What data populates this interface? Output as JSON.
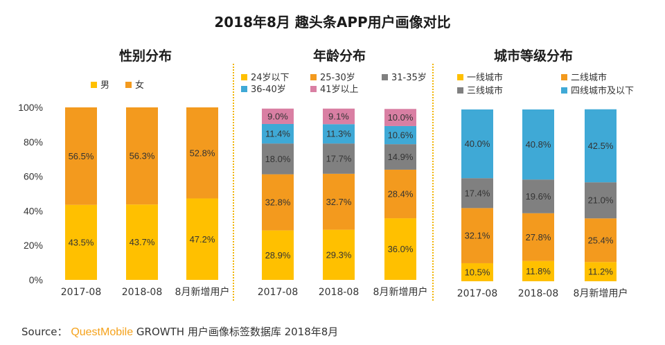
{
  "title": "2018年8月 趣头条APP用户画像对比",
  "source": {
    "prefix": "Source：",
    "brand": "QuestMobile",
    "suffix": "GROWTH 用户画像标签数据库 2018年8月"
  },
  "chart_data": [
    {
      "type": "bar",
      "stacked": true,
      "title": "性别分布",
      "categories": [
        "2017-08",
        "2018-08",
        "8月新增用户"
      ],
      "yticks": [
        "0%",
        "20%",
        "40%",
        "60%",
        "80%",
        "100%"
      ],
      "ylim": [
        0,
        100
      ],
      "legend_position": "top",
      "series": [
        {
          "name": "男",
          "color": "#ffc000",
          "values": [
            43.5,
            43.7,
            47.2
          ],
          "labels": [
            "43.5%",
            "43.7%",
            "47.2%"
          ]
        },
        {
          "name": "女",
          "color": "#f39a1e",
          "values": [
            56.5,
            56.3,
            52.8
          ],
          "labels": [
            "56.5%",
            "56.3%",
            "52.8%"
          ]
        }
      ]
    },
    {
      "type": "bar",
      "stacked": true,
      "title": "年龄分布",
      "categories": [
        "2017-08",
        "2018-08",
        "8月新增用户"
      ],
      "ylim": [
        0,
        100
      ],
      "legend_position": "top",
      "series": [
        {
          "name": "24岁以下",
          "color": "#ffc000",
          "values": [
            28.9,
            29.3,
            36.0
          ],
          "labels": [
            "28.9%",
            "29.3%",
            "36.0%"
          ]
        },
        {
          "name": "25-30岁",
          "color": "#f39a1e",
          "values": [
            32.8,
            32.7,
            28.4
          ],
          "labels": [
            "32.8%",
            "32.7%",
            "28.4%"
          ]
        },
        {
          "name": "31-35岁",
          "color": "#808080",
          "values": [
            18.0,
            17.7,
            14.9
          ],
          "labels": [
            "18.0%",
            "17.7%",
            "14.9%"
          ]
        },
        {
          "name": "36-40岁",
          "color": "#3fa9d6",
          "values": [
            11.4,
            11.3,
            10.6
          ],
          "labels": [
            "11.4%",
            "11.3%",
            "10.6%"
          ]
        },
        {
          "name": "41岁以上",
          "color": "#d97fa3",
          "values": [
            9.0,
            9.1,
            10.0
          ],
          "labels": [
            "9.0%",
            "9.1%",
            "10.0%"
          ]
        }
      ]
    },
    {
      "type": "bar",
      "stacked": true,
      "title": "城市等级分布",
      "categories": [
        "2017-08",
        "2018-08",
        "8月新增用户"
      ],
      "ylim": [
        0,
        100
      ],
      "legend_position": "top",
      "series": [
        {
          "name": "一线城市",
          "color": "#ffc000",
          "values": [
            10.5,
            11.8,
            11.2
          ],
          "labels": [
            "10.5%",
            "11.8%",
            "11.2%"
          ]
        },
        {
          "name": "二线城市",
          "color": "#f39a1e",
          "values": [
            32.1,
            27.8,
            25.4
          ],
          "labels": [
            "32.1%",
            "27.8%",
            "25.4%"
          ]
        },
        {
          "name": "三线城市",
          "color": "#808080",
          "values": [
            17.4,
            19.6,
            21.0
          ],
          "labels": [
            "17.4%",
            "19.6%",
            "21.0%"
          ]
        },
        {
          "name": "四线城市及以下",
          "color": "#3fa9d6",
          "values": [
            40.0,
            40.8,
            42.5
          ],
          "labels": [
            "40.0%",
            "40.8%",
            "42.5%"
          ]
        }
      ]
    }
  ]
}
